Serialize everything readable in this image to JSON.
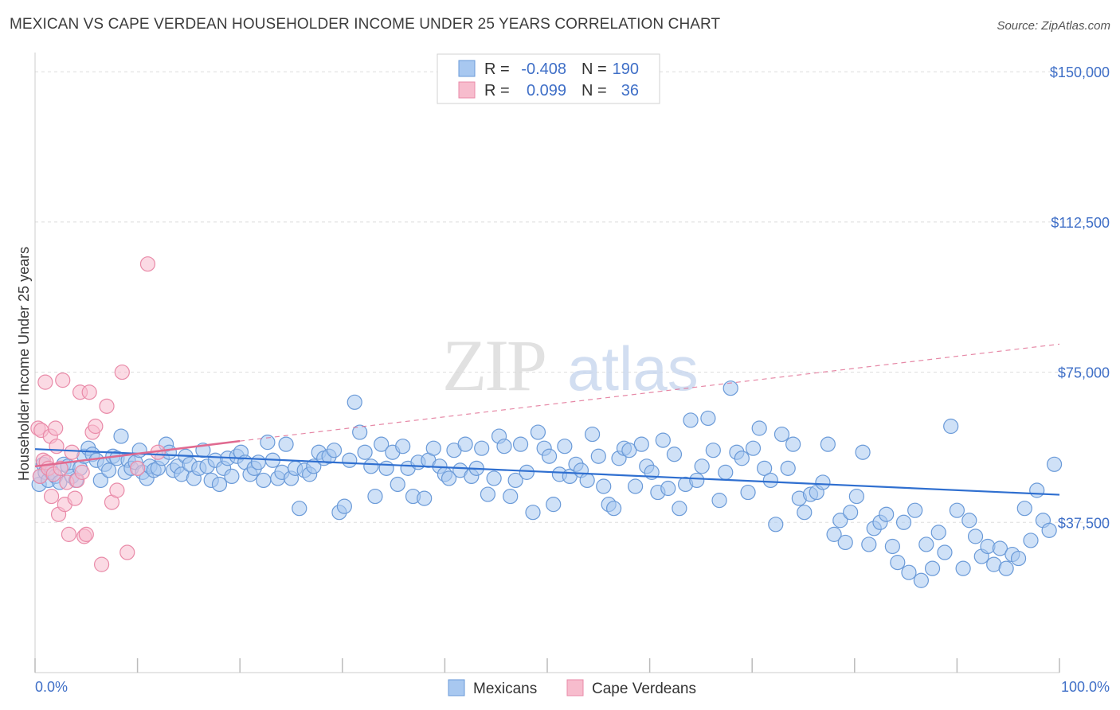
{
  "title": "MEXICAN VS CAPE VERDEAN HOUSEHOLDER INCOME UNDER 25 YEARS CORRELATION CHART",
  "source": "Source: ZipAtlas.com",
  "watermark": {
    "zip": "ZIP",
    "atlas": "atlas"
  },
  "colors": {
    "mexicans_fill": "#a8c8f0",
    "mexicans_stroke": "#6a9ad8",
    "mexicans_line": "#2f6fd0",
    "cape_fill": "#f7bccd",
    "cape_stroke": "#e98aa8",
    "cape_line": "#e06a90",
    "tick_label": "#3f6fc7",
    "grid": "#dddddd"
  },
  "legend": {
    "rows": [
      {
        "r_label": "R =",
        "r_value": "-0.408",
        "n_label": "N =",
        "n_value": "190"
      },
      {
        "r_label": "R =",
        "r_value": "0.099",
        "n_label": "N =",
        "n_value": "36"
      }
    ]
  },
  "bottom_legend": [
    "Mexicans",
    "Cape Verdeans"
  ],
  "chart_data": {
    "type": "scatter",
    "title": "MEXICAN VS CAPE VERDEAN HOUSEHOLDER INCOME UNDER 25 YEARS CORRELATION CHART",
    "xlabel": "",
    "ylabel": "Householder Income Under 25 years",
    "x_tick_labels": [
      "0.0%",
      "100.0%"
    ],
    "y_tick_labels": [
      "$37,500",
      "$75,000",
      "$112,500",
      "$150,000"
    ],
    "y_ticks": [
      37500,
      75000,
      112500,
      150000
    ],
    "xlim": [
      0,
      100
    ],
    "ylim": [
      0,
      154000
    ],
    "grid": true,
    "legend_position": "top-center",
    "series": [
      {
        "name": "Mexicans",
        "R": -0.408,
        "N": 190,
        "trend": {
          "x": [
            0,
            100
          ],
          "y": [
            55800,
            44400
          ],
          "style": "solid"
        },
        "points": [
          [
            0.4,
            47000
          ],
          [
            0.5,
            49000
          ],
          [
            0.8,
            52000
          ],
          [
            1.0,
            50000
          ],
          [
            1.3,
            48000
          ],
          [
            1.6,
            50000
          ],
          [
            2.0,
            49000
          ],
          [
            2.4,
            47500
          ],
          [
            2.8,
            52000
          ],
          [
            3.2,
            51500
          ],
          [
            3.6,
            49000
          ],
          [
            4.0,
            48000
          ],
          [
            4.4,
            51000
          ],
          [
            4.8,
            54000
          ],
          [
            5.2,
            56000
          ],
          [
            5.6,
            54500
          ],
          [
            6.0,
            53000
          ],
          [
            6.4,
            48000
          ],
          [
            6.8,
            52000
          ],
          [
            7.2,
            50500
          ],
          [
            7.6,
            54000
          ],
          [
            8.0,
            53500
          ],
          [
            8.4,
            59000
          ],
          [
            8.8,
            50000
          ],
          [
            9.1,
            53000
          ],
          [
            9.4,
            51000
          ],
          [
            9.8,
            52500
          ],
          [
            10.2,
            55500
          ],
          [
            10.5,
            50000
          ],
          [
            10.9,
            48500
          ],
          [
            11.2,
            51500
          ],
          [
            11.6,
            50500
          ],
          [
            12.0,
            51000
          ],
          [
            12.4,
            53500
          ],
          [
            12.8,
            57000
          ],
          [
            13.1,
            55000
          ],
          [
            13.5,
            50500
          ],
          [
            13.9,
            51500
          ],
          [
            14.3,
            49500
          ],
          [
            14.7,
            54000
          ],
          [
            15.1,
            52000
          ],
          [
            15.5,
            48500
          ],
          [
            16.0,
            51000
          ],
          [
            16.4,
            55500
          ],
          [
            16.8,
            51500
          ],
          [
            17.2,
            48000
          ],
          [
            17.6,
            53000
          ],
          [
            18.0,
            47000
          ],
          [
            18.4,
            51000
          ],
          [
            18.8,
            53500
          ],
          [
            19.2,
            49000
          ],
          [
            19.7,
            54000
          ],
          [
            20.1,
            55000
          ],
          [
            20.5,
            52500
          ],
          [
            21.0,
            49500
          ],
          [
            21.4,
            51000
          ],
          [
            21.8,
            52500
          ],
          [
            22.3,
            48000
          ],
          [
            22.7,
            57500
          ],
          [
            23.2,
            53000
          ],
          [
            23.7,
            48500
          ],
          [
            24.1,
            50000
          ],
          [
            24.5,
            57000
          ],
          [
            25.0,
            48500
          ],
          [
            25.4,
            51000
          ],
          [
            25.8,
            41000
          ],
          [
            26.3,
            50500
          ],
          [
            26.8,
            49500
          ],
          [
            27.2,
            51500
          ],
          [
            27.7,
            55000
          ],
          [
            28.2,
            53500
          ],
          [
            28.7,
            54000
          ],
          [
            29.2,
            55500
          ],
          [
            29.7,
            40000
          ],
          [
            30.2,
            41500
          ],
          [
            30.7,
            53000
          ],
          [
            31.2,
            67500
          ],
          [
            31.7,
            60000
          ],
          [
            32.2,
            55000
          ],
          [
            32.8,
            51500
          ],
          [
            33.2,
            44000
          ],
          [
            33.8,
            57000
          ],
          [
            34.3,
            51000
          ],
          [
            34.9,
            55000
          ],
          [
            35.4,
            47000
          ],
          [
            35.9,
            56500
          ],
          [
            36.4,
            51000
          ],
          [
            36.9,
            44000
          ],
          [
            37.4,
            52500
          ],
          [
            38.0,
            43500
          ],
          [
            38.4,
            53000
          ],
          [
            38.9,
            56000
          ],
          [
            39.5,
            51500
          ],
          [
            40.0,
            49500
          ],
          [
            40.4,
            48500
          ],
          [
            40.9,
            55500
          ],
          [
            41.5,
            50500
          ],
          [
            42.0,
            57000
          ],
          [
            42.6,
            49000
          ],
          [
            43.1,
            51000
          ],
          [
            43.6,
            56000
          ],
          [
            44.2,
            44500
          ],
          [
            44.8,
            48500
          ],
          [
            45.3,
            59000
          ],
          [
            45.8,
            56500
          ],
          [
            46.4,
            44000
          ],
          [
            46.9,
            48000
          ],
          [
            47.4,
            57000
          ],
          [
            48.0,
            50000
          ],
          [
            48.6,
            40000
          ],
          [
            49.1,
            60000
          ],
          [
            49.7,
            56000
          ],
          [
            50.2,
            54000
          ],
          [
            50.6,
            42000
          ],
          [
            51.2,
            49500
          ],
          [
            51.7,
            56500
          ],
          [
            52.2,
            49000
          ],
          [
            52.8,
            52000
          ],
          [
            53.3,
            50500
          ],
          [
            53.9,
            48000
          ],
          [
            54.4,
            59500
          ],
          [
            55.0,
            54000
          ],
          [
            55.5,
            46500
          ],
          [
            56.0,
            42000
          ],
          [
            56.5,
            41000
          ],
          [
            57.0,
            53500
          ],
          [
            57.5,
            56000
          ],
          [
            58.0,
            55500
          ],
          [
            58.6,
            46500
          ],
          [
            59.2,
            57000
          ],
          [
            59.7,
            51500
          ],
          [
            60.2,
            50000
          ],
          [
            60.8,
            45000
          ],
          [
            61.3,
            58000
          ],
          [
            61.8,
            46000
          ],
          [
            62.4,
            54500
          ],
          [
            62.9,
            41000
          ],
          [
            63.5,
            47000
          ],
          [
            64.0,
            63000
          ],
          [
            64.6,
            48000
          ],
          [
            65.1,
            51500
          ],
          [
            65.7,
            63500
          ],
          [
            66.2,
            55500
          ],
          [
            66.8,
            43000
          ],
          [
            67.4,
            50000
          ],
          [
            67.9,
            71000
          ],
          [
            68.5,
            55000
          ],
          [
            69.0,
            53500
          ],
          [
            69.6,
            45000
          ],
          [
            70.1,
            56000
          ],
          [
            70.7,
            61000
          ],
          [
            71.2,
            51000
          ],
          [
            71.8,
            48000
          ],
          [
            72.3,
            37000
          ],
          [
            72.9,
            59500
          ],
          [
            73.5,
            51000
          ],
          [
            74.0,
            57000
          ],
          [
            74.6,
            43500
          ],
          [
            75.1,
            40000
          ],
          [
            75.7,
            44500
          ],
          [
            76.3,
            45000
          ],
          [
            76.9,
            47500
          ],
          [
            77.4,
            57000
          ],
          [
            78.0,
            34500
          ],
          [
            78.6,
            38000
          ],
          [
            79.1,
            32500
          ],
          [
            79.6,
            40000
          ],
          [
            80.2,
            44000
          ],
          [
            80.8,
            55000
          ],
          [
            81.4,
            32000
          ],
          [
            81.9,
            36000
          ],
          [
            82.5,
            37500
          ],
          [
            83.1,
            39500
          ],
          [
            83.7,
            31500
          ],
          [
            84.2,
            27500
          ],
          [
            84.8,
            37500
          ],
          [
            85.3,
            25000
          ],
          [
            85.9,
            40500
          ],
          [
            86.5,
            23000
          ],
          [
            87.0,
            32000
          ],
          [
            87.6,
            26000
          ],
          [
            88.2,
            35000
          ],
          [
            88.8,
            30000
          ],
          [
            89.4,
            61500
          ],
          [
            90.0,
            40500
          ],
          [
            90.6,
            26000
          ],
          [
            91.2,
            38000
          ],
          [
            91.8,
            34000
          ],
          [
            92.4,
            29000
          ],
          [
            93.0,
            31500
          ],
          [
            93.6,
            27000
          ],
          [
            94.2,
            31000
          ],
          [
            94.8,
            26000
          ],
          [
            95.4,
            29500
          ],
          [
            96.0,
            28500
          ],
          [
            96.6,
            41000
          ],
          [
            97.2,
            33000
          ],
          [
            97.8,
            45500
          ],
          [
            98.4,
            38000
          ],
          [
            99.0,
            35500
          ],
          [
            99.5,
            52000
          ]
        ]
      },
      {
        "name": "Cape Verdeans",
        "R": 0.099,
        "N": 36,
        "trend": {
          "x": [
            0,
            20
          ],
          "y": [
            51500,
            57800
          ],
          "style": "solid",
          "extended_to_x": 100,
          "extended_to_y": 82000,
          "extended_style": "dashed"
        },
        "points": [
          [
            0.3,
            61000
          ],
          [
            0.5,
            49000
          ],
          [
            0.6,
            60500
          ],
          [
            0.8,
            53000
          ],
          [
            1.0,
            72500
          ],
          [
            1.1,
            52500
          ],
          [
            1.3,
            51000
          ],
          [
            1.5,
            59000
          ],
          [
            1.6,
            44000
          ],
          [
            1.8,
            49500
          ],
          [
            2.0,
            61000
          ],
          [
            2.1,
            56500
          ],
          [
            2.3,
            39500
          ],
          [
            2.5,
            51000
          ],
          [
            2.7,
            73000
          ],
          [
            2.9,
            42000
          ],
          [
            3.1,
            47500
          ],
          [
            3.3,
            34500
          ],
          [
            3.6,
            55000
          ],
          [
            3.9,
            43500
          ],
          [
            4.1,
            48000
          ],
          [
            4.4,
            70000
          ],
          [
            4.6,
            50000
          ],
          [
            4.8,
            34000
          ],
          [
            5.0,
            34500
          ],
          [
            5.3,
            70000
          ],
          [
            5.6,
            60000
          ],
          [
            5.9,
            61500
          ],
          [
            6.5,
            27000
          ],
          [
            7.0,
            66500
          ],
          [
            7.5,
            42500
          ],
          [
            8.0,
            45500
          ],
          [
            8.5,
            75000
          ],
          [
            9.0,
            30000
          ],
          [
            10.0,
            51000
          ],
          [
            11.0,
            102000
          ],
          [
            12.0,
            55000
          ]
        ]
      }
    ]
  }
}
